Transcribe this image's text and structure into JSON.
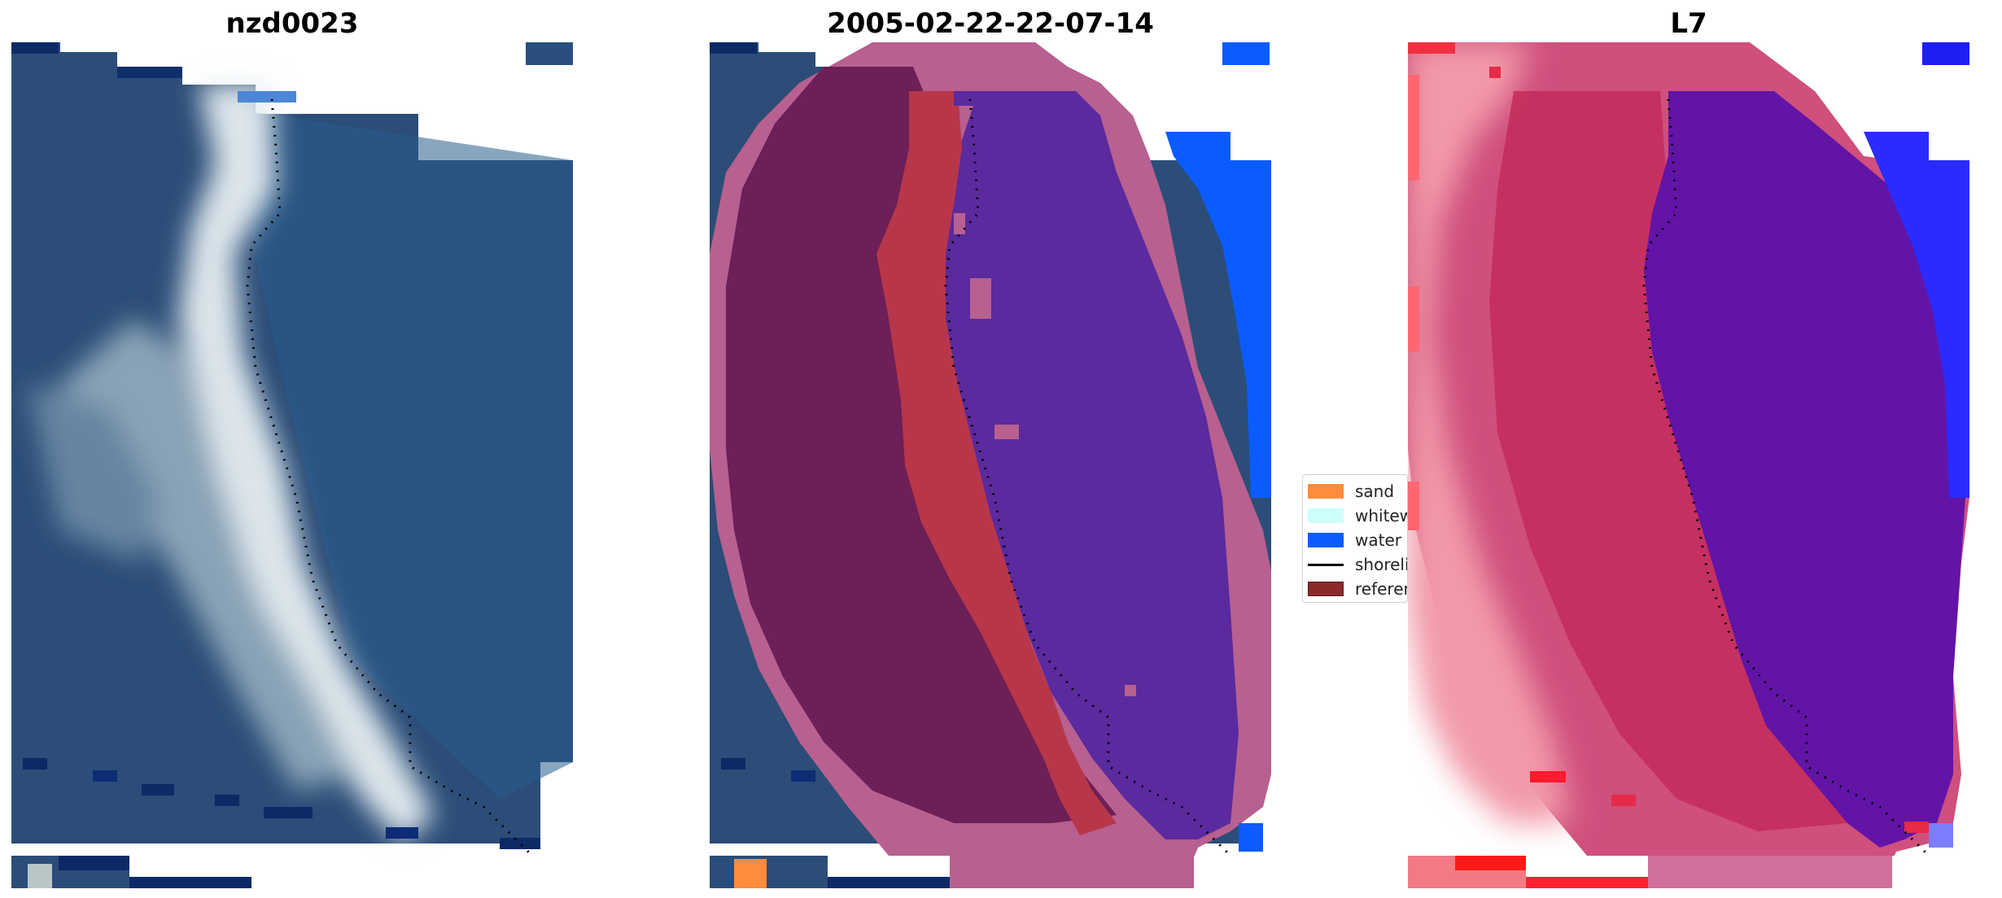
{
  "figure": {
    "panels": [
      {
        "title": "nzd0023"
      },
      {
        "title": "2005-02-22-22-07-14"
      },
      {
        "title": "L7"
      }
    ],
    "legend": {
      "items": [
        {
          "label": "sand",
          "color": "#ff8c3a",
          "kind": "patch"
        },
        {
          "label": "whitewater",
          "color": "#ccfffa",
          "kind": "patch"
        },
        {
          "label": "water",
          "color": "#0b5cff",
          "kind": "patch"
        },
        {
          "label": "shoreline",
          "color": "#000000",
          "kind": "line"
        },
        {
          "label": "reference",
          "color": "#8b2a2a",
          "kind": "patch"
        }
      ]
    }
  }
}
